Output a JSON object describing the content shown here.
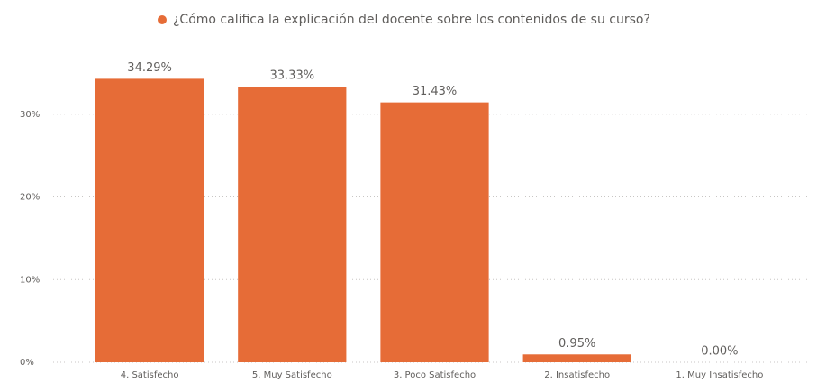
{
  "chart_data": {
    "type": "bar",
    "categories": [
      "4. Satisfecho",
      "5. Muy Satisfecho",
      "3. Poco Satisfecho",
      "2. Insatisfecho",
      "1. Muy Insatisfecho"
    ],
    "series": [
      {
        "name": "¿Cómo califica la explicación del docente sobre los contenidos de su curso?",
        "color": "#e66c37",
        "values": [
          34.29,
          33.33,
          31.43,
          0.95,
          0.0
        ],
        "value_labels": [
          "34.29%",
          "33.33%",
          "31.43%",
          "0.95%",
          "0.00%"
        ]
      }
    ],
    "ylim": [
      0,
      40
    ],
    "yticks": [
      {
        "value": 0,
        "label": "0%"
      },
      {
        "value": 10,
        "label": "10%"
      },
      {
        "value": 20,
        "label": "20%"
      },
      {
        "value": 30,
        "label": "30%"
      }
    ],
    "grid": true,
    "legend": "top"
  }
}
